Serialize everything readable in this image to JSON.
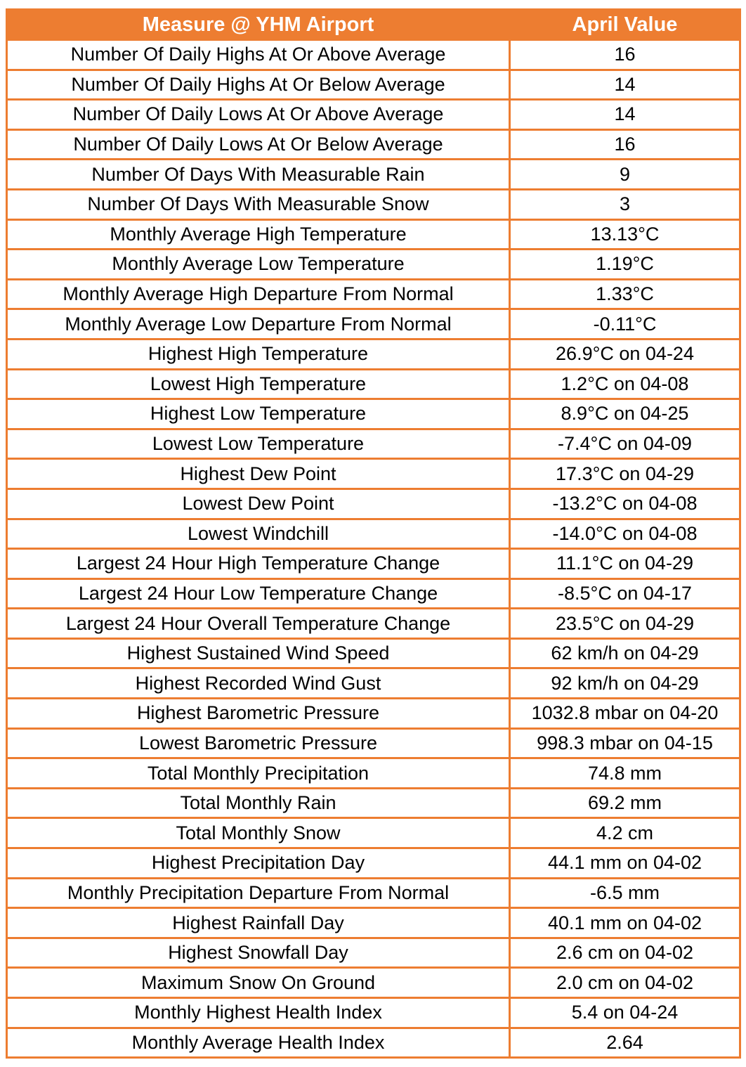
{
  "title": "Monthly weather measures table for YHM Airport (April)",
  "colors": {
    "header_bg": "#ED7D31",
    "header_text": "#FFFFFF",
    "border": "#ED7D31",
    "row_bg": "#FFFFFF",
    "row_text": "#000000"
  },
  "chart_data": {
    "type": "table",
    "columns": [
      "Measure @ YHM Airport",
      "April Value"
    ],
    "rows": [
      [
        "Number Of Daily Highs At Or Above Average",
        "16"
      ],
      [
        "Number Of Daily Highs At Or Below Average",
        "14"
      ],
      [
        "Number Of Daily Lows At Or Above Average",
        "14"
      ],
      [
        "Number Of Daily Lows At Or Below Average",
        "16"
      ],
      [
        "Number Of Days With Measurable Rain",
        "9"
      ],
      [
        "Number Of Days With Measurable Snow",
        "3"
      ],
      [
        "Monthly Average High Temperature",
        "13.13°C"
      ],
      [
        "Monthly Average Low Temperature",
        "1.19°C"
      ],
      [
        "Monthly Average High Departure From Normal",
        "1.33°C"
      ],
      [
        "Monthly Average Low Departure From Normal",
        "-0.11°C"
      ],
      [
        "Highest High Temperature",
        "26.9°C on 04-24"
      ],
      [
        "Lowest High Temperature",
        "1.2°C on 04-08"
      ],
      [
        "Highest Low Temperature",
        "8.9°C on 04-25"
      ],
      [
        "Lowest Low Temperature",
        "-7.4°C on 04-09"
      ],
      [
        "Highest Dew Point",
        "17.3°C on 04-29"
      ],
      [
        "Lowest Dew Point",
        "-13.2°C on 04-08"
      ],
      [
        "Lowest Windchill",
        "-14.0°C on 04-08"
      ],
      [
        "Largest 24 Hour High Temperature Change",
        "11.1°C on 04-29"
      ],
      [
        "Largest 24 Hour Low Temperature Change",
        "-8.5°C on 04-17"
      ],
      [
        "Largest 24 Hour Overall Temperature Change",
        "23.5°C on 04-29"
      ],
      [
        "Highest Sustained Wind Speed",
        "62 km/h on 04-29"
      ],
      [
        "Highest Recorded Wind Gust",
        "92 km/h on 04-29"
      ],
      [
        "Highest Barometric Pressure",
        "1032.8 mbar on 04-20"
      ],
      [
        "Lowest Barometric Pressure",
        "998.3 mbar on 04-15"
      ],
      [
        "Total Monthly Precipitation",
        "74.8 mm"
      ],
      [
        "Total Monthly Rain",
        "69.2 mm"
      ],
      [
        "Total Monthly Snow",
        "4.2 cm"
      ],
      [
        "Highest Precipitation Day",
        "44.1 mm on 04-02"
      ],
      [
        "Monthly Precipitation Departure From Normal",
        "-6.5 mm"
      ],
      [
        "Highest Rainfall Day",
        "40.1 mm on 04-02"
      ],
      [
        "Highest Snowfall Day",
        "2.6 cm on 04-02"
      ],
      [
        "Maximum Snow On Ground",
        "2.0 cm on 04-02"
      ],
      [
        "Monthly Highest Health Index",
        "5.4 on 04-24"
      ],
      [
        "Monthly Average Health Index",
        "2.64"
      ]
    ]
  }
}
